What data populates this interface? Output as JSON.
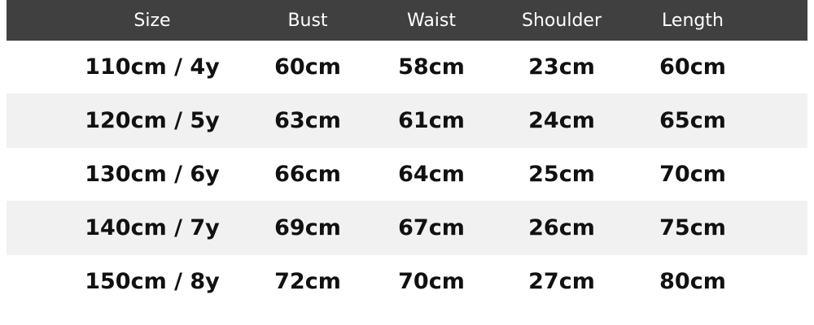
{
  "table": {
    "headers": [
      "Size",
      "Bust",
      "Waist",
      "Shoulder",
      "Length"
    ],
    "rows": [
      [
        "110cm / 4y",
        "60cm",
        "58cm",
        "23cm",
        "60cm"
      ],
      [
        "120cm / 5y",
        "63cm",
        "61cm",
        "24cm",
        "65cm"
      ],
      [
        "130cm / 6y",
        "66cm",
        "64cm",
        "25cm",
        "70cm"
      ],
      [
        "140cm / 7y",
        "69cm",
        "67cm",
        "26cm",
        "75cm"
      ],
      [
        "150cm / 8y",
        "72cm",
        "70cm",
        "27cm",
        "80cm"
      ]
    ]
  },
  "colors": {
    "header_bg": "#404040",
    "header_text": "#ffffff",
    "stripe_bg": "#f1f1f1"
  }
}
